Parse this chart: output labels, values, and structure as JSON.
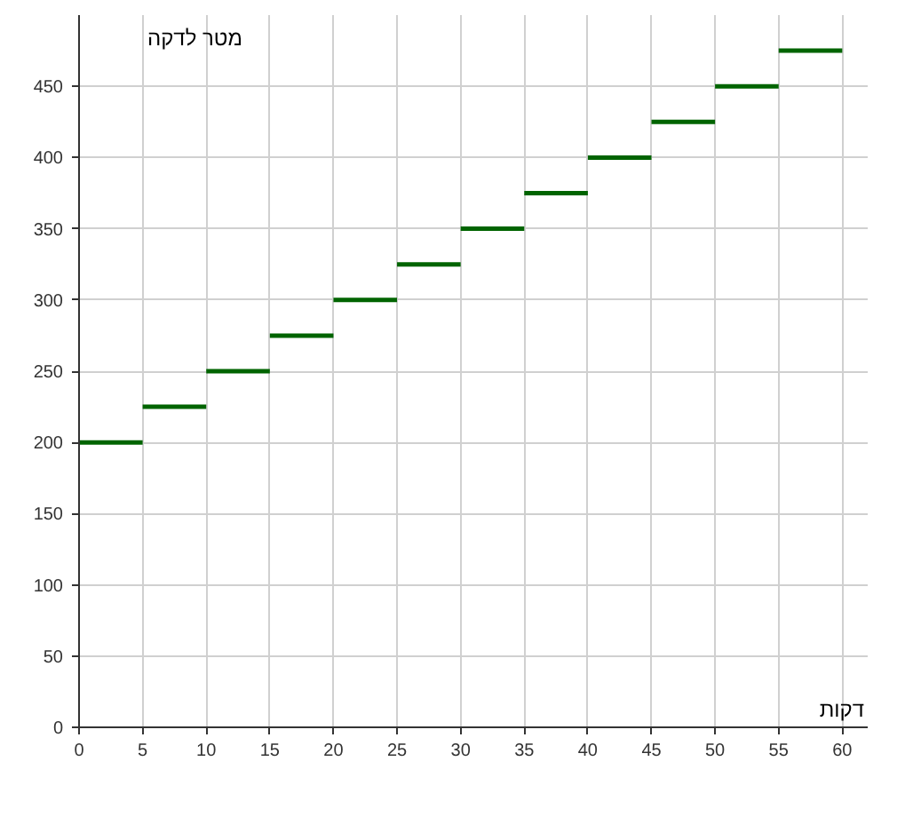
{
  "chart_data": {
    "type": "line",
    "xlabel": "דקות",
    "ylabel": "מטר לדקה",
    "series": [
      {
        "color": "#006400",
        "x": [
          0,
          5
        ],
        "values": [
          200,
          200
        ]
      },
      {
        "color": "#006400",
        "x": [
          5,
          10
        ],
        "values": [
          225,
          225
        ]
      },
      {
        "color": "#006400",
        "x": [
          10,
          15
        ],
        "values": [
          250,
          250
        ]
      },
      {
        "color": "#006400",
        "x": [
          15,
          20
        ],
        "values": [
          275,
          275
        ]
      },
      {
        "color": "#006400",
        "x": [
          20,
          25
        ],
        "values": [
          300,
          300
        ]
      },
      {
        "color": "#006400",
        "x": [
          25,
          30
        ],
        "values": [
          325,
          325
        ]
      },
      {
        "color": "#006400",
        "x": [
          30,
          35
        ],
        "values": [
          350,
          350
        ]
      },
      {
        "color": "#006400",
        "x": [
          35,
          40
        ],
        "values": [
          375,
          375
        ]
      },
      {
        "color": "#006400",
        "x": [
          40,
          45
        ],
        "values": [
          400,
          400
        ]
      },
      {
        "color": "#006400",
        "x": [
          45,
          50
        ],
        "values": [
          425,
          425
        ]
      },
      {
        "color": "#006400",
        "x": [
          50,
          55
        ],
        "values": [
          450,
          450
        ]
      },
      {
        "color": "#006400",
        "x": [
          55,
          60
        ],
        "values": [
          475,
          475
        ]
      }
    ],
    "xlim": [
      0,
      62
    ],
    "ylim": [
      0,
      500
    ],
    "xticks": [
      0,
      5,
      10,
      15,
      20,
      25,
      30,
      35,
      40,
      45,
      50,
      55,
      60
    ],
    "yticks": [
      0,
      50,
      100,
      150,
      200,
      250,
      300,
      350,
      400,
      450
    ],
    "grid": true
  }
}
